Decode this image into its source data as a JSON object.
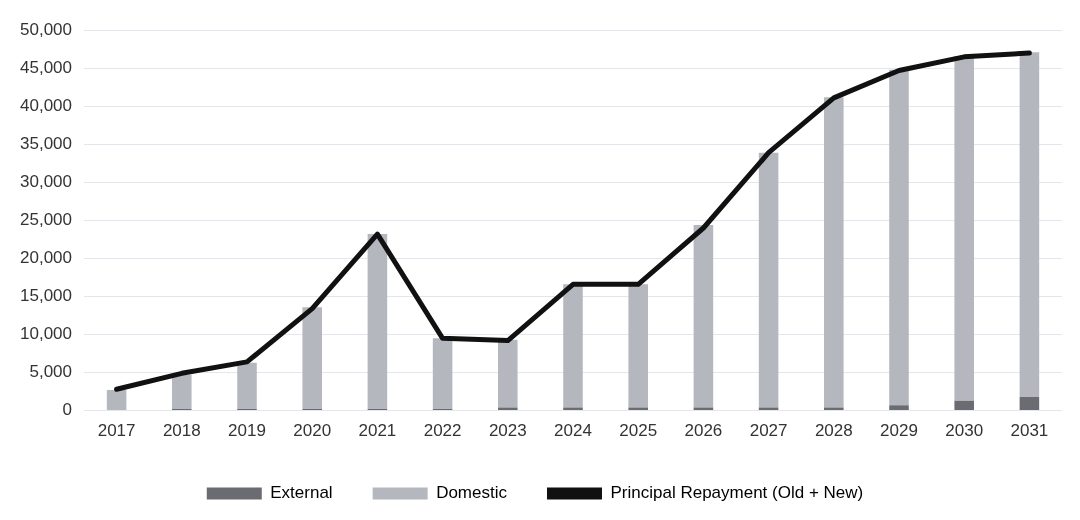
{
  "chart_data": {
    "type": "bar",
    "stacked": true,
    "categories": [
      "2017",
      "2018",
      "2019",
      "2020",
      "2021",
      "2022",
      "2023",
      "2024",
      "2025",
      "2026",
      "2027",
      "2028",
      "2029",
      "2030",
      "2031"
    ],
    "series": [
      {
        "name": "External",
        "color": "#6b6c72",
        "values": [
          0,
          200,
          200,
          200,
          200,
          200,
          400,
          400,
          400,
          400,
          400,
          400,
          700,
          1300,
          1800
        ]
      },
      {
        "name": "Domestic",
        "color": "#b5b7be",
        "values": [
          2700,
          4500,
          6100,
          13400,
          23000,
          9300,
          8900,
          16200,
          16200,
          24000,
          33500,
          40800,
          44100,
          45300,
          45300
        ]
      },
      {
        "name": "Principal Repayment (Old + New)",
        "type": "line",
        "color": "#111111",
        "values": [
          2800,
          4900,
          6400,
          13400,
          23200,
          9500,
          9200,
          16600,
          16600,
          24000,
          33900,
          41100,
          44700,
          46500,
          47000
        ]
      }
    ],
    "ylim": [
      0,
      50000
    ],
    "yticks": [
      {
        "value": 0,
        "label": "0"
      },
      {
        "value": 5000,
        "label": "5,000"
      },
      {
        "value": 10000,
        "label": "10,000"
      },
      {
        "value": 15000,
        "label": "15,000"
      },
      {
        "value": 20000,
        "label": "20,000"
      },
      {
        "value": 25000,
        "label": "25,000"
      },
      {
        "value": 30000,
        "label": "30,000"
      },
      {
        "value": 35000,
        "label": "35,000"
      },
      {
        "value": 40000,
        "label": "40,000"
      },
      {
        "value": 45000,
        "label": "45,000"
      },
      {
        "value": 50000,
        "label": "50,000"
      }
    ],
    "grid": "y",
    "legend": "bottom",
    "marker": "none"
  }
}
